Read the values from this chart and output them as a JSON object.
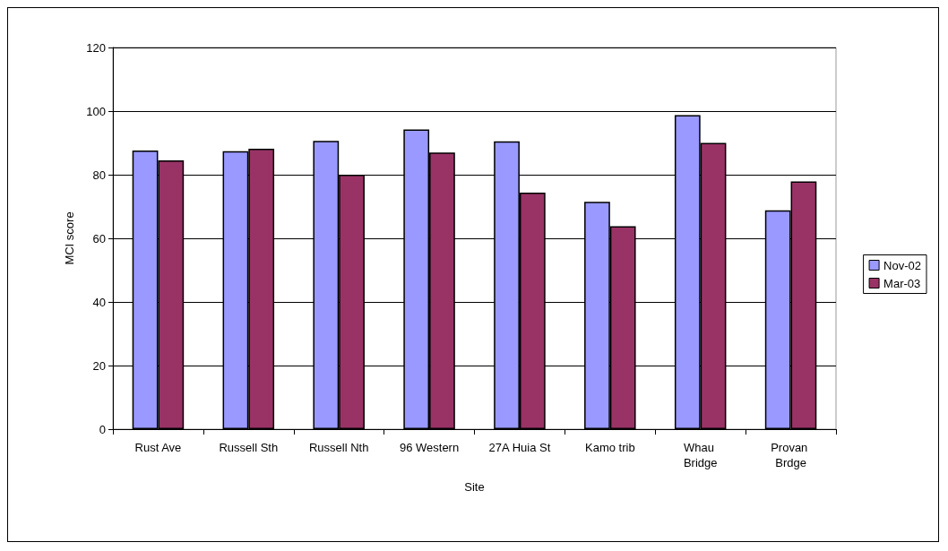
{
  "chart_data": {
    "type": "bar",
    "xlabel": "Site",
    "ylabel": "MCI score",
    "categories": [
      "Rust Ave",
      "Russell Sth",
      "Russell Nth",
      "96 Western",
      "27A Huia St",
      "Kamo trib",
      "Whau Bridge",
      "Provan Brdge"
    ],
    "series": [
      {
        "name": "Nov-02",
        "color": "#9999ff",
        "values": [
          87.6,
          87.4,
          90.6,
          94.2,
          90.5,
          71.5,
          98.7,
          68.8
        ]
      },
      {
        "name": "Mar-03",
        "color": "#993366",
        "values": [
          84.5,
          88.2,
          80.0,
          87.0,
          74.4,
          63.8,
          90.0,
          77.9
        ]
      }
    ],
    "ylim": [
      0,
      120
    ],
    "yticks": [
      0,
      20,
      40,
      60,
      80,
      100,
      120
    ],
    "grid": "y",
    "legend": "right"
  }
}
